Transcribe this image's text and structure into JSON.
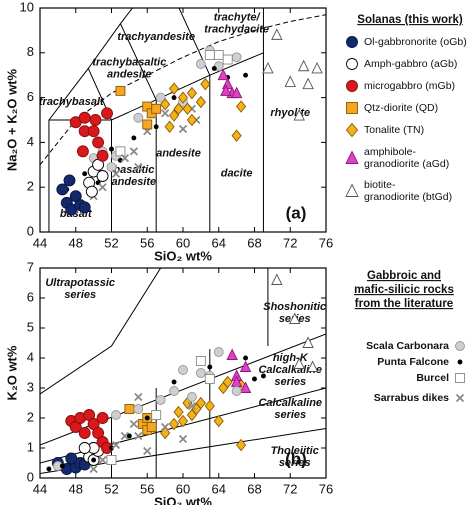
{
  "chart_data": [
    {
      "type": "scatter",
      "xlabel": "SiO₂ wt%",
      "ylabel": "Na₂O + K₂O wt%",
      "panel_label": "(a)",
      "xlim": [
        44,
        76
      ],
      "ylim": [
        0,
        10
      ],
      "xticks": [
        44,
        48,
        52,
        56,
        60,
        64,
        68,
        72,
        76
      ],
      "yticks": [
        0,
        2,
        4,
        6,
        8,
        10
      ],
      "legend_title": "Solanas (this work)",
      "field_labels": [
        [
          "trachyte/",
          "trachydacite"
        ],
        [
          "trachyandesite"
        ],
        [
          "trachybasaltic",
          "andesite"
        ],
        [
          "trachybasalt"
        ],
        [
          "basalt"
        ],
        [
          "basaltic",
          "andesite"
        ],
        [
          "andesite"
        ],
        [
          "dacite"
        ],
        [
          "rhyolite"
        ]
      ],
      "boundaries": [
        {
          "x": [
            45,
            45,
            49.4,
            53,
            57.6
          ],
          "y": [
            0,
            5,
            7.3,
            9.3,
            11.7
          ]
        },
        {
          "x": [
            45,
            52,
            57,
            63,
            69,
            69
          ],
          "y": [
            5,
            5,
            5.9,
            7,
            8,
            13
          ]
        },
        {
          "x": [
            52,
            52,
            49.4
          ],
          "y": [
            0,
            5,
            7.3
          ]
        },
        {
          "x": [
            57,
            57,
            53
          ],
          "y": [
            0,
            5.9,
            9.3
          ]
        },
        {
          "x": [
            63,
            63,
            57.6
          ],
          "y": [
            0,
            7,
            11.7
          ]
        },
        {
          "x": [
            69,
            69
          ],
          "y": [
            0,
            8
          ]
        }
      ],
      "divide": {
        "x": [
          44,
          48,
          52,
          56,
          60,
          64,
          68,
          72,
          76
        ],
        "y": [
          3.0,
          5.0,
          6.2,
          7.0,
          7.8,
          8.5,
          9.0,
          9.4,
          9.7
        ],
        "dashed": true
      },
      "background_series": [
        {
          "color": "#cfcfcf",
          "edgecolor": "#999999",
          "marker": "circle",
          "x": [
            50,
            51,
            52.5,
            55,
            57.5,
            60,
            62,
            63,
            64,
            66,
            52
          ],
          "values": [
            3.3,
            3.6,
            3.4,
            5.1,
            6.0,
            5.8,
            7.5,
            8.1,
            7.4,
            7.8,
            2.9
          ]
        },
        {
          "color": "#000000",
          "edgecolor": "#000000",
          "marker": "dot",
          "x": [
            47,
            49,
            50.5,
            52,
            53,
            54.5,
            57,
            59,
            63.5,
            67,
            65
          ],
          "values": [
            1.9,
            2.6,
            2.2,
            3.7,
            3.2,
            4.2,
            4.7,
            6.0,
            7.3,
            7.0,
            6.9
          ]
        },
        {
          "color": "#ffffff",
          "edgecolor": "#888888",
          "marker": "square",
          "x": [
            53,
            64,
            65,
            63
          ],
          "values": [
            3.6,
            7.9,
            7.7,
            7.9
          ]
        },
        {
          "color": "#8a8a8a",
          "edgecolor": "#8a8a8a",
          "marker": "cross",
          "x": [
            50,
            51,
            52.5,
            53.5,
            54.5,
            55,
            56,
            58,
            60,
            61,
            61.5
          ],
          "values": [
            1.6,
            2.0,
            2.6,
            3.3,
            3.6,
            2.9,
            4.5,
            5.3,
            4.6,
            5.5,
            5.0
          ]
        }
      ],
      "series": [
        {
          "name": "Ol-gabbronorite (oGb)",
          "color": "#14296b",
          "edgecolor": "#0a1640",
          "marker": "circle",
          "x": [
            46.5,
            47,
            47.5,
            48,
            48.5,
            47.3,
            49
          ],
          "values": [
            1.9,
            1.3,
            1.0,
            1.6,
            1.2,
            2.3,
            1.1
          ]
        },
        {
          "name": "Amph-gabbro (aGb)",
          "color": "#ffffff",
          "edgecolor": "#000000",
          "marker": "circle",
          "x": [
            49.5,
            50,
            50.5,
            51,
            49.8
          ],
          "values": [
            2.2,
            2.7,
            3.0,
            2.5,
            1.8
          ]
        },
        {
          "name": "microgabbro (mGb)",
          "color": "#d7191c",
          "edgecolor": "#8a0c0e",
          "marker": "circle",
          "x": [
            48,
            49,
            49,
            50,
            50.5,
            51,
            51.5,
            48.8,
            50.2
          ],
          "values": [
            4.9,
            5.1,
            4.5,
            4.5,
            4.0,
            3.4,
            5.3,
            3.6,
            5.0
          ]
        },
        {
          "name": "Qtz-diorite (QD)",
          "color": "#f5a623",
          "edgecolor": "#8a5a00",
          "marker": "square",
          "x": [
            53,
            56,
            56.5,
            56,
            57
          ],
          "values": [
            6.3,
            5.6,
            5.3,
            4.8,
            5.5
          ]
        },
        {
          "name": "Tonalite (TN)",
          "color": "#f2b21a",
          "edgecolor": "#8a5a00",
          "marker": "diamond",
          "x": [
            58,
            59,
            59.5,
            60,
            60.5,
            61,
            61,
            62,
            62.5,
            59,
            66,
            66.5,
            58.5
          ],
          "values": [
            5.7,
            5.2,
            5.5,
            6.0,
            5.5,
            6.2,
            5.0,
            5.8,
            6.6,
            6.4,
            4.3,
            5.6,
            4.7
          ]
        },
        {
          "name": "amphibole-granodiorite (aGd)",
          "color": "#e040c8",
          "edgecolor": "#8a1a78",
          "marker": "triangle",
          "x": [
            64.5,
            65,
            65.5,
            66,
            64.8
          ],
          "values": [
            7.0,
            6.6,
            6.2,
            6.2,
            6.3
          ]
        },
        {
          "name": "biotite-granodiorite (btGd)",
          "color": "#ffffff",
          "edgecolor": "#555555",
          "marker": "triangle",
          "x": [
            69.5,
            70.5,
            72,
            73.5,
            74,
            75,
            73
          ],
          "values": [
            7.3,
            8.8,
            6.7,
            7.4,
            6.6,
            7.3,
            5.2
          ]
        }
      ]
    },
    {
      "type": "scatter",
      "xlabel": "SiO₂ wt%",
      "ylabel": "K₂O wt%",
      "panel_label": "(b)",
      "xlim": [
        44,
        76
      ],
      "ylim": [
        0,
        7
      ],
      "xticks": [
        44,
        48,
        52,
        56,
        60,
        64,
        68,
        72,
        76
      ],
      "yticks": [
        0,
        1,
        2,
        3,
        4,
        5,
        6,
        7
      ],
      "legend_title": [
        "Gabbroic and",
        "mafic-silicic rocks",
        "from the literature"
      ],
      "field_labels": [
        [
          "Ultrapotassic",
          "series"
        ],
        [
          "Shoshonitic",
          "series"
        ],
        [
          "high-K",
          "Calcalkaline",
          "series"
        ],
        [
          "Calcalkaline",
          "series"
        ],
        [
          "Tholeiitic",
          "series"
        ]
      ],
      "boundaries": [
        {
          "x": [
            44,
            76
          ],
          "y": [
            0.15,
            1.65
          ]
        },
        {
          "x": [
            44,
            76
          ],
          "y": [
            0.5,
            3.0
          ]
        },
        {
          "x": [
            44,
            76
          ],
          "y": [
            1.1,
            4.8
          ]
        },
        {
          "x": [
            44,
            52,
            57.5
          ],
          "y": [
            2.8,
            4.4,
            7
          ]
        },
        {
          "x": [
            52,
            52
          ],
          "y": [
            0,
            2.0
          ]
        },
        {
          "x": [
            57,
            57
          ],
          "y": [
            0,
            3.0
          ]
        },
        {
          "x": [
            63,
            63
          ],
          "y": [
            0,
            4.3
          ]
        },
        {
          "x": [
            69.5,
            69.5
          ],
          "y": [
            4.4,
            7
          ]
        }
      ],
      "background_series": [
        {
          "color": "#14296b",
          "edgecolor": "#0a1640",
          "marker": "circle",
          "x": [
            46,
            47,
            48,
            48.5,
            49,
            47.5
          ],
          "values": [
            0.5,
            0.3,
            0.35,
            0.5,
            0.45,
            0.65
          ]
        },
        {
          "color": "#ffffff",
          "edgecolor": "#000000",
          "marker": "circle",
          "x": [
            49.5,
            50,
            50.5,
            50,
            49
          ],
          "values": [
            0.7,
            0.6,
            0.9,
            1.0,
            1.0
          ]
        },
        {
          "color": "#d7191c",
          "edgecolor": "#8a0c0e",
          "marker": "circle",
          "x": [
            47.5,
            48,
            48.5,
            49,
            49.5,
            50,
            50.5,
            51,
            51.5,
            51
          ],
          "values": [
            1.9,
            1.7,
            2.0,
            1.5,
            2.1,
            1.8,
            1.5,
            1.2,
            1.0,
            2.0
          ]
        },
        {
          "color": "#f5a623",
          "edgecolor": "#8a5a00",
          "marker": "square",
          "x": [
            54,
            55.5,
            56,
            56,
            56.5
          ],
          "values": [
            2.3,
            1.8,
            2.0,
            1.6,
            1.7
          ]
        },
        {
          "color": "#f2b21a",
          "edgecolor": "#8a5a00",
          "marker": "diamond",
          "x": [
            58,
            59,
            59.5,
            60,
            60.5,
            61,
            61.5,
            62,
            63,
            64,
            65,
            66.5,
            66.5,
            64.5
          ],
          "values": [
            1.5,
            1.8,
            2.2,
            1.9,
            2.5,
            2.1,
            2.3,
            2.5,
            2.4,
            1.9,
            3.2,
            3.1,
            1.1,
            3.0
          ]
        },
        {
          "color": "#e040c8",
          "edgecolor": "#8a1a78",
          "marker": "triangle",
          "x": [
            65.5,
            66,
            66,
            67,
            67
          ],
          "values": [
            4.1,
            3.4,
            3.2,
            3.7,
            3.0
          ]
        },
        {
          "color": "#ffffff",
          "edgecolor": "#555555",
          "marker": "triangle",
          "x": [
            70.5,
            72.5,
            73,
            74.5,
            74
          ],
          "values": [
            6.6,
            5.3,
            3.8,
            3.7,
            4.5
          ]
        }
      ],
      "series": [
        {
          "name": "Scala Carbonara",
          "color": "#cfcfcf",
          "edgecolor": "#999999",
          "marker": "circle",
          "x": [
            46,
            52.5,
            55,
            57.5,
            59,
            61,
            62,
            63,
            64,
            66,
            60
          ],
          "values": [
            0.4,
            2.1,
            2.3,
            2.6,
            2.9,
            2.7,
            3.5,
            3.4,
            4.2,
            2.9,
            3.6
          ]
        },
        {
          "name": "Punta Falcone",
          "color": "#000000",
          "edgecolor": "#000000",
          "marker": "dot",
          "x": [
            45,
            46.5,
            50,
            52,
            54,
            56,
            59,
            63,
            67,
            68,
            69
          ],
          "values": [
            0.3,
            0.4,
            0.6,
            1.0,
            1.4,
            2.0,
            3.2,
            3.7,
            4.0,
            3.3,
            3.4
          ]
        },
        {
          "name": "Burcel",
          "color": "#ffffff",
          "edgecolor": "#888888",
          "marker": "square",
          "x": [
            52,
            57,
            62,
            63
          ],
          "values": [
            0.6,
            2.1,
            3.9,
            3.3
          ]
        },
        {
          "name": "Sarrabus dikes",
          "color": "#8a8a8a",
          "edgecolor": "#8a8a8a",
          "marker": "cross",
          "x": [
            50,
            51,
            52.5,
            53.5,
            54.5,
            55,
            56,
            58,
            60,
            61,
            55
          ],
          "values": [
            0.3,
            0.6,
            1.1,
            1.4,
            1.8,
            1.4,
            0.9,
            1.7,
            1.3,
            2.4,
            2.7
          ]
        }
      ]
    }
  ]
}
